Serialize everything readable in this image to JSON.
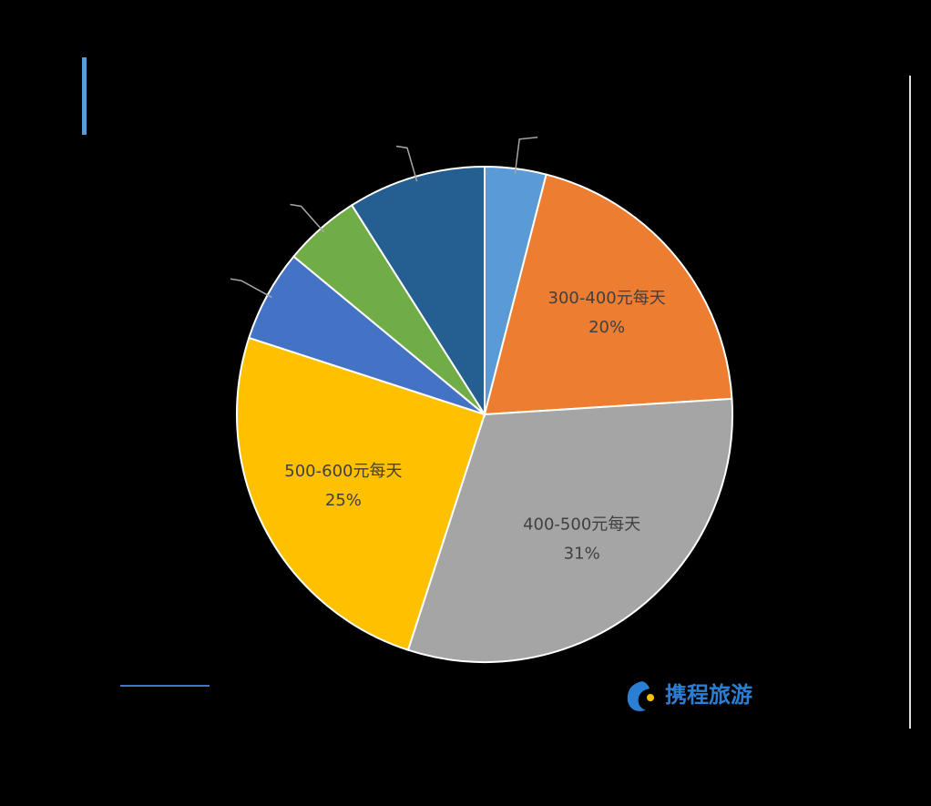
{
  "chart_data": {
    "type": "pie",
    "categories": [
      null,
      "300-400元每天",
      "400-500元每天",
      "500-600元每天",
      null,
      null,
      null
    ],
    "values": [
      4,
      20,
      31,
      25,
      6,
      5,
      9
    ],
    "value_labels": [
      null,
      "20%",
      "31%",
      "25%",
      null,
      null,
      null
    ],
    "colors": [
      "#5b9bd5",
      "#ed7d31",
      "#a5a5a5",
      "#ffc000",
      "#4472c4",
      "#70ad47",
      "#255e91"
    ]
  },
  "logo": "携程旅游"
}
